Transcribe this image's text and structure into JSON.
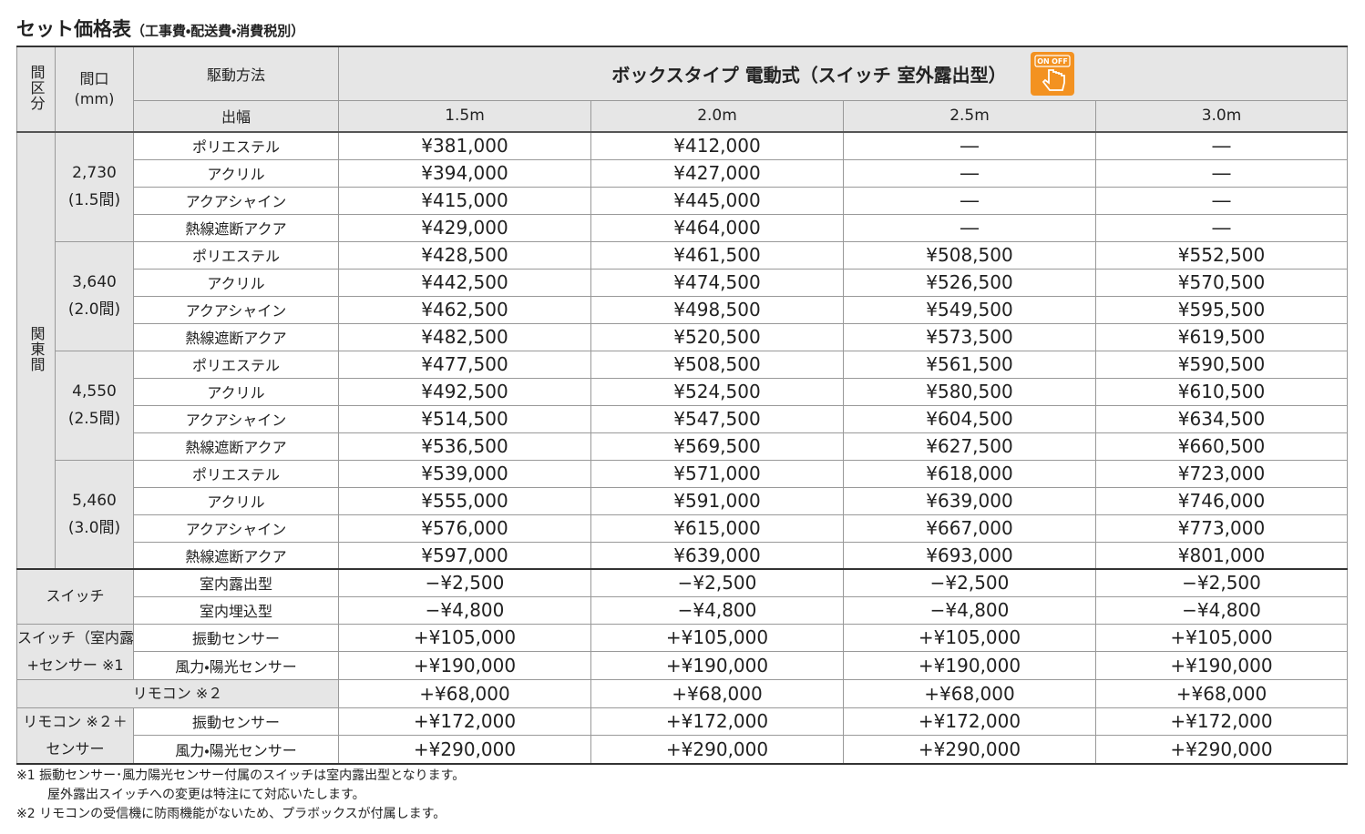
{
  "title": "セット価格表",
  "subtitle": "（工事費・配送費・消費税別）",
  "table": {
    "header": {
      "category": "間区分",
      "width_label": [
        "間口",
        "(mm)"
      ],
      "drive_label": "駆動方法",
      "product": "ボックスタイプ 電動式（スイッチ 室外露出型）",
      "icon_label": [
        "ON",
        "OFF"
      ],
      "projection_label": "出幅",
      "projections": [
        "1.5m",
        "2.0m",
        "2.5m",
        "3.0m"
      ]
    },
    "region": "関東間",
    "groups": [
      {
        "width": "2,730",
        "ken": "(1.5間)",
        "rows": [
          {
            "material": "ポリエステル",
            "prices": [
              "¥381,000",
              "¥412,000",
              "―",
              "―"
            ]
          },
          {
            "material": "アクリル",
            "prices": [
              "¥394,000",
              "¥427,000",
              "―",
              "―"
            ]
          },
          {
            "material": "アクアシャイン",
            "prices": [
              "¥415,000",
              "¥445,000",
              "―",
              "―"
            ]
          },
          {
            "material": "熱線遮断アクア",
            "prices": [
              "¥429,000",
              "¥464,000",
              "―",
              "―"
            ]
          }
        ]
      },
      {
        "width": "3,640",
        "ken": "(2.0間)",
        "rows": [
          {
            "material": "ポリエステル",
            "prices": [
              "¥428,500",
              "¥461,500",
              "¥508,500",
              "¥552,500"
            ]
          },
          {
            "material": "アクリル",
            "prices": [
              "¥442,500",
              "¥474,500",
              "¥526,500",
              "¥570,500"
            ]
          },
          {
            "material": "アクアシャイン",
            "prices": [
              "¥462,500",
              "¥498,500",
              "¥549,500",
              "¥595,500"
            ]
          },
          {
            "material": "熱線遮断アクア",
            "prices": [
              "¥482,500",
              "¥520,500",
              "¥573,500",
              "¥619,500"
            ]
          }
        ]
      },
      {
        "width": "4,550",
        "ken": "(2.5間)",
        "rows": [
          {
            "material": "ポリエステル",
            "prices": [
              "¥477,500",
              "¥508,500",
              "¥561,500",
              "¥590,500"
            ]
          },
          {
            "material": "アクリル",
            "prices": [
              "¥492,500",
              "¥524,500",
              "¥580,500",
              "¥610,500"
            ]
          },
          {
            "material": "アクアシャイン",
            "prices": [
              "¥514,500",
              "¥547,500",
              "¥604,500",
              "¥634,500"
            ]
          },
          {
            "material": "熱線遮断アクア",
            "prices": [
              "¥536,500",
              "¥569,500",
              "¥627,500",
              "¥660,500"
            ]
          }
        ]
      },
      {
        "width": "5,460",
        "ken": "(3.0間)",
        "rows": [
          {
            "material": "ポリエステル",
            "prices": [
              "¥539,000",
              "¥571,000",
              "¥618,000",
              "¥723,000"
            ]
          },
          {
            "material": "アクリル",
            "prices": [
              "¥555,000",
              "¥591,000",
              "¥639,000",
              "¥746,000"
            ]
          },
          {
            "material": "アクアシャイン",
            "prices": [
              "¥576,000",
              "¥615,000",
              "¥667,000",
              "¥773,000"
            ]
          },
          {
            "material": "熱線遮断アクア",
            "prices": [
              "¥597,000",
              "¥639,000",
              "¥693,000",
              "¥801,000"
            ]
          }
        ]
      }
    ],
    "options": [
      {
        "label": [
          "スイッチ"
        ],
        "rows": [
          {
            "name": "室内露出型",
            "prices": [
              "−¥2,500",
              "−¥2,500",
              "−¥2,500",
              "−¥2,500"
            ]
          },
          {
            "name": "室内埋込型",
            "prices": [
              "−¥4,800",
              "−¥4,800",
              "−¥4,800",
              "−¥4,800"
            ]
          }
        ]
      },
      {
        "label": [
          "スイッチ（室内露出型）",
          "+センサー ※1"
        ],
        "rows": [
          {
            "name": "振動センサー",
            "prices": [
              "+¥105,000",
              "+¥105,000",
              "+¥105,000",
              "+¥105,000"
            ]
          },
          {
            "name": "風力・陽光センサー",
            "prices": [
              "+¥190,000",
              "+¥190,000",
              "+¥190,000",
              "+¥190,000"
            ]
          }
        ]
      },
      {
        "label": [
          "リモコン ※２"
        ],
        "rows": [
          {
            "prices": [
              "+¥68,000",
              "+¥68,000",
              "+¥68,000",
              "+¥68,000"
            ]
          }
        ]
      },
      {
        "label": [
          "リモコン ※２＋",
          "センサー"
        ],
        "rows": [
          {
            "name": "振動センサー",
            "prices": [
              "+¥172,000",
              "+¥172,000",
              "+¥172,000",
              "+¥172,000"
            ]
          },
          {
            "name": "風力・陽光センサー",
            "prices": [
              "+¥290,000",
              "+¥290,000",
              "+¥290,000",
              "+¥290,000"
            ]
          }
        ]
      }
    ]
  },
  "notes": [
    "※1 振動センサー･風力陽光センサー付属のスイッチは室内露出型となります。",
    "屋外露出スイッチへの変更は特注にて対応いたします。",
    "※2 リモコンの受信機に防雨機能がないため、プラボックスが付属します。"
  ]
}
